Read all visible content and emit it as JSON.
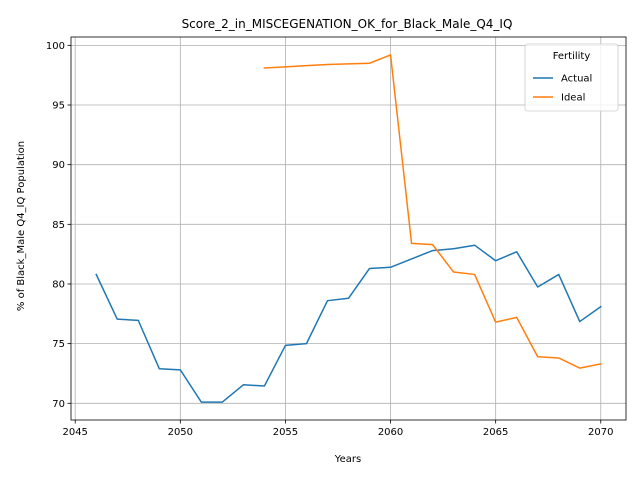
{
  "chart_data": {
    "type": "line",
    "title": "Score_2_in_MISCEGENATION_OK_for_Black_Male_Q4_IQ",
    "xlabel": "Years",
    "ylabel": "% of Black_Male Q4_IQ Population",
    "xlim": [
      2044.8,
      2071.2
    ],
    "ylim": [
      68.6,
      100.7
    ],
    "xticks": [
      2045,
      2050,
      2055,
      2060,
      2065,
      2070
    ],
    "yticks": [
      70,
      75,
      80,
      85,
      90,
      95,
      100
    ],
    "grid": true,
    "legend": {
      "title": "Fertility",
      "placement": "top-right"
    },
    "series": [
      {
        "name": "Actual",
        "color": "#1f77b4",
        "x": [
          2046,
          2047,
          2048,
          2049,
          2050,
          2051,
          2052,
          2053,
          2054,
          2055,
          2056,
          2057,
          2058,
          2059,
          2060,
          2061,
          2062,
          2063,
          2064,
          2065,
          2066,
          2067,
          2068,
          2069,
          2070
        ],
        "y": [
          80.8,
          77.05,
          76.95,
          72.9,
          72.8,
          70.1,
          70.1,
          71.55,
          71.45,
          74.85,
          75.0,
          78.6,
          78.8,
          81.3,
          81.4,
          82.1,
          82.8,
          82.95,
          83.25,
          81.95,
          82.7,
          79.75,
          80.8,
          76.85,
          78.1
        ]
      },
      {
        "name": "Ideal",
        "color": "#ff7f0e",
        "x": [
          2054,
          2055,
          2056,
          2057,
          2058,
          2059,
          2060,
          2061,
          2062,
          2063,
          2064,
          2065,
          2066,
          2067,
          2068,
          2069,
          2070
        ],
        "y": [
          98.1,
          98.2,
          98.3,
          98.4,
          98.45,
          98.5,
          99.2,
          83.4,
          83.3,
          81.0,
          80.8,
          76.8,
          77.2,
          73.9,
          73.8,
          72.95,
          73.3
        ]
      }
    ]
  }
}
